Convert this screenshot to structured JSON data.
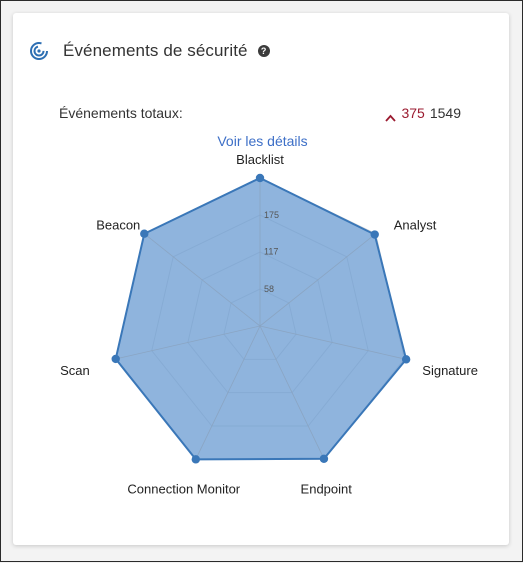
{
  "header": {
    "title": "Événements de sécurité",
    "help_glyph": "?"
  },
  "totals": {
    "label": "Événements totaux:",
    "delta": "375",
    "total": "1549"
  },
  "details_link": "Voir les détails",
  "colors": {
    "fill": "#6f9fd3",
    "stroke": "#3a77b8",
    "grid": "#d6d6d6",
    "spoke": "#8aa3c0",
    "delta_red": "#9b1b30",
    "link_blue": "#3d6fc7"
  },
  "chart_data": {
    "type": "radar",
    "title": "",
    "categories": [
      "Blacklist",
      "Analyst",
      "Signature",
      "Endpoint",
      "Connection Monitor",
      "Scan",
      "Beacon"
    ],
    "series": [
      {
        "values": [
          233,
          231,
          236,
          232,
          233,
          233,
          233
        ]
      }
    ],
    "ticks": [
      "58",
      "117",
      "175"
    ],
    "tick_values": [
      58,
      117,
      175
    ],
    "max": 233,
    "grid_levels": 4,
    "grid": true,
    "legend": "none"
  }
}
